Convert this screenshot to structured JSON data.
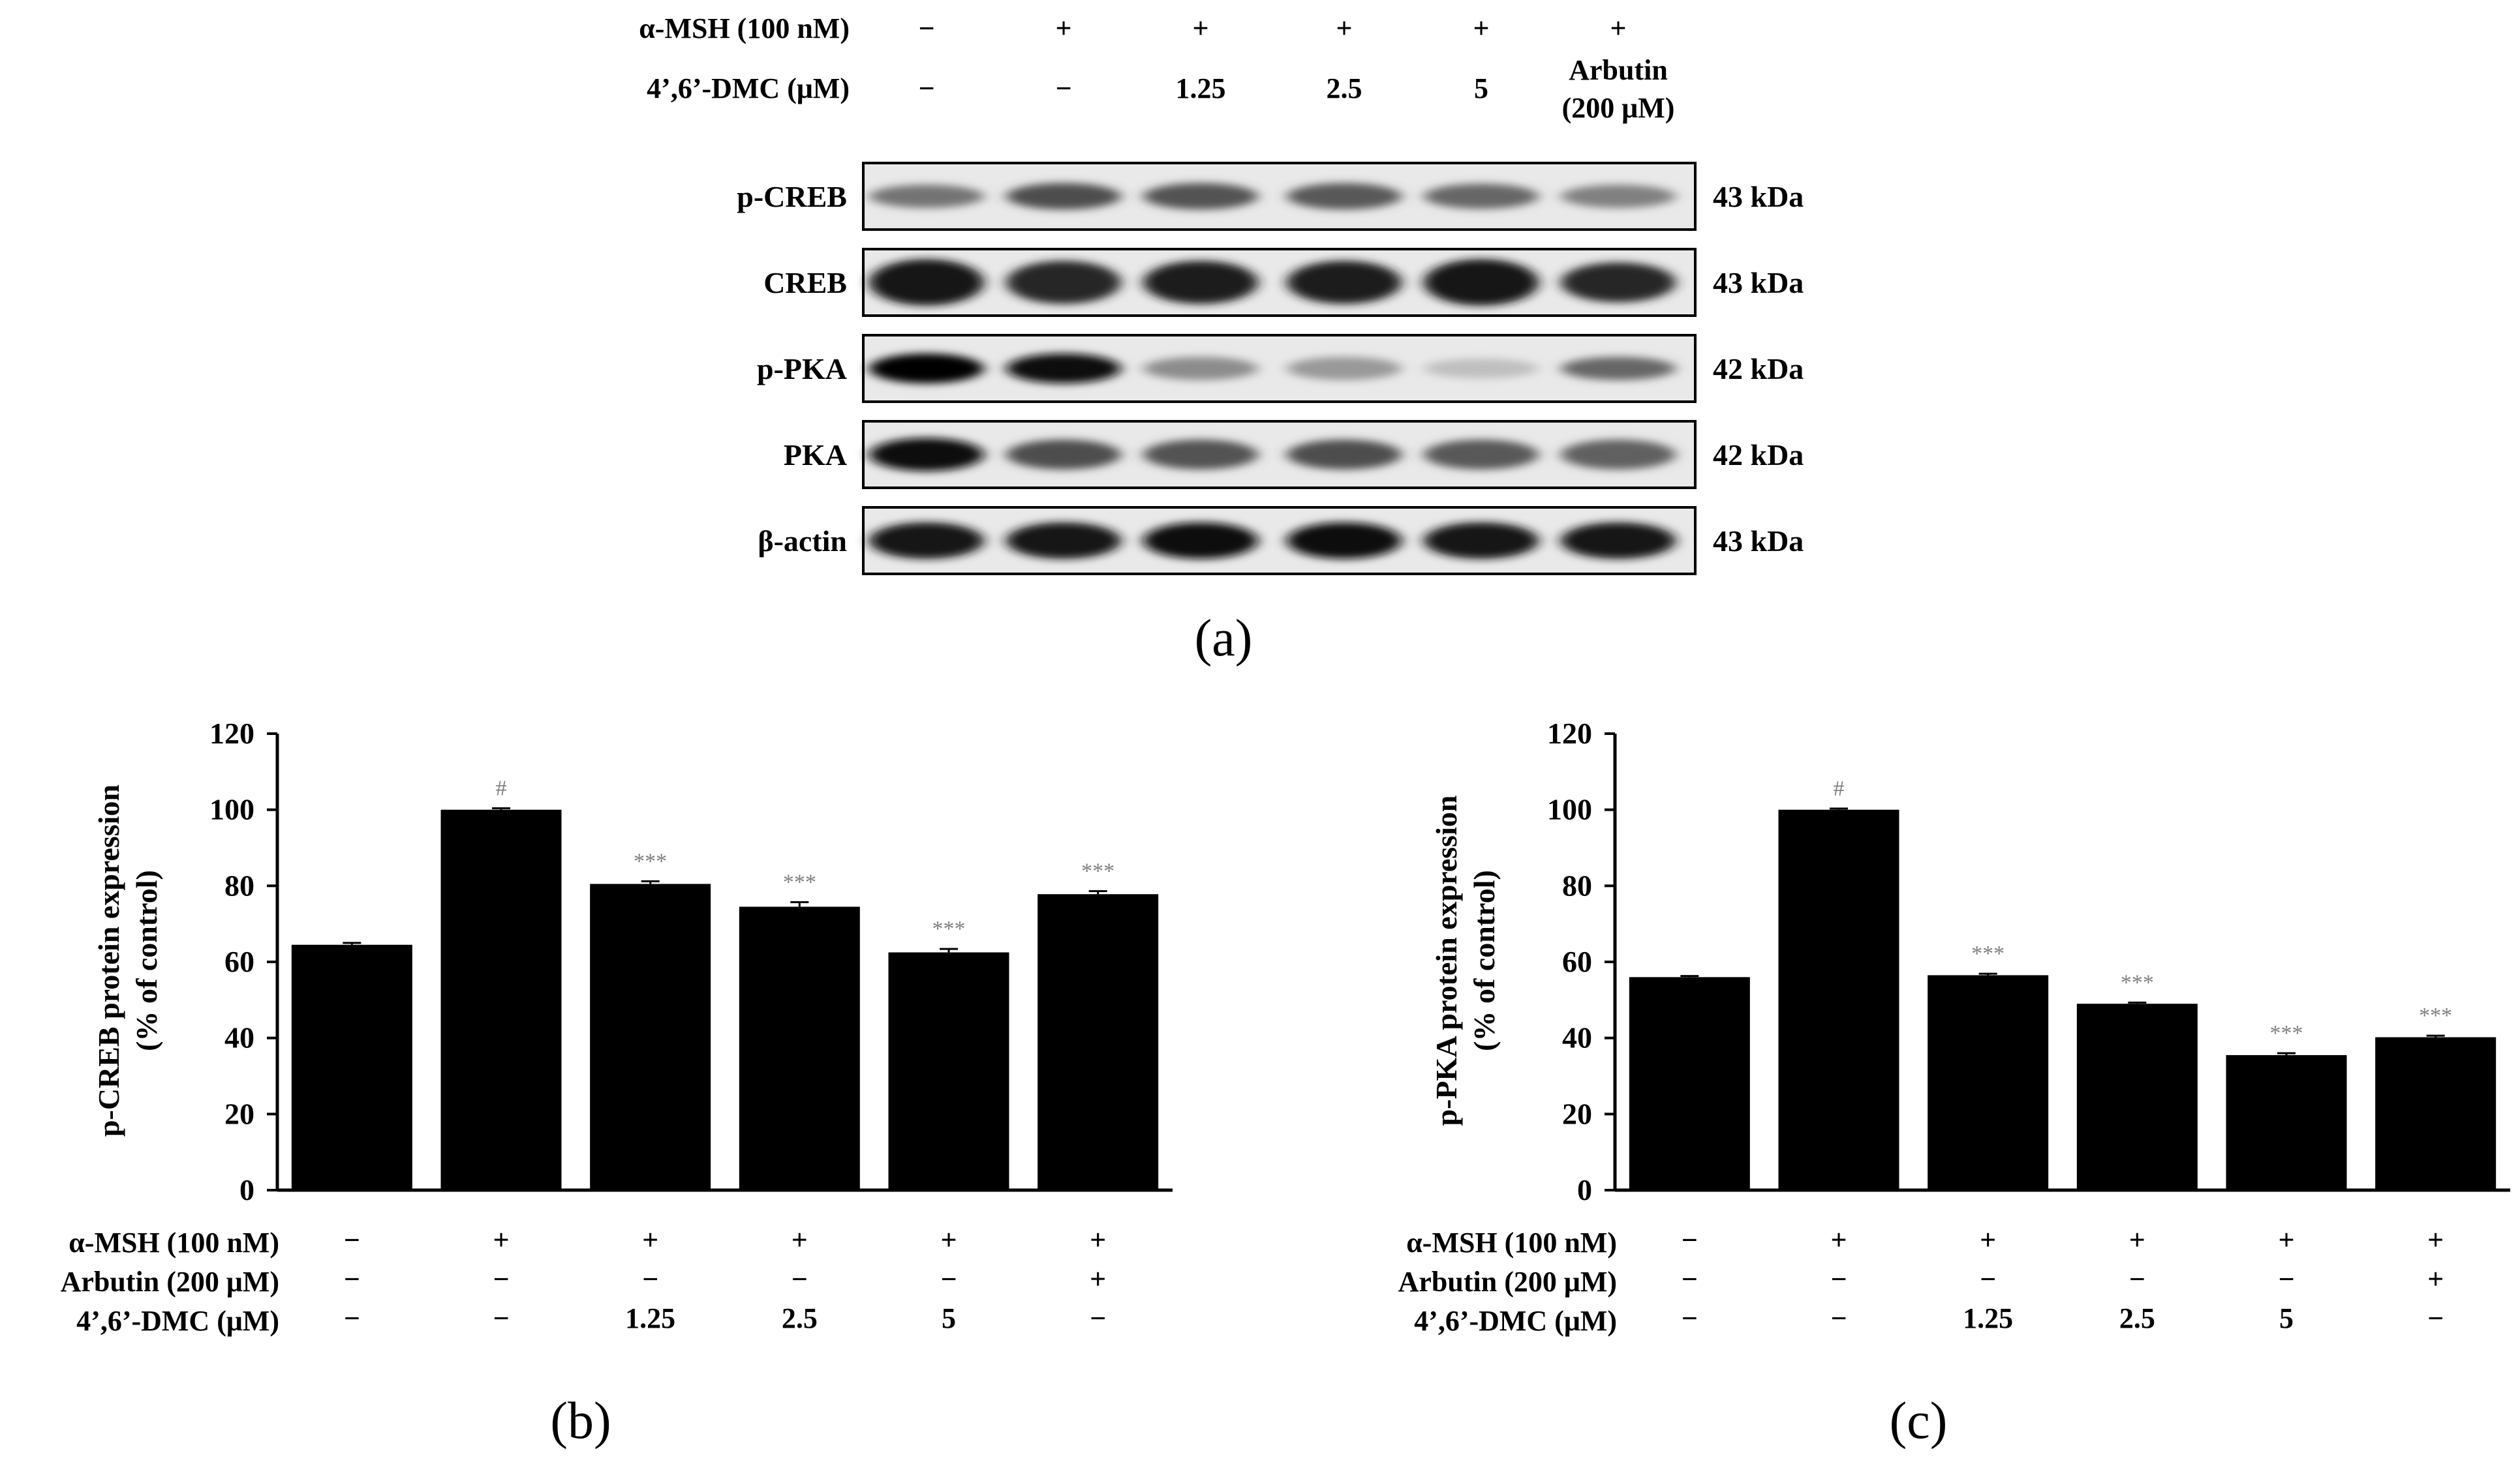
{
  "panel_a": {
    "caption": "(a)",
    "treatment_rows": [
      {
        "label": "α-MSH (100 nM)",
        "values": [
          "−",
          "+",
          "+",
          "+",
          "+",
          "+"
        ]
      },
      {
        "label": "4’,6’-DMC (μM)",
        "values": [
          "−",
          "−",
          "1.25",
          "2.5",
          "5",
          "Arbutin"
        ],
        "extra": [
          "",
          "",
          "",
          "",
          "",
          "(200 μM)"
        ]
      }
    ],
    "blots": [
      {
        "name": "p-CREB",
        "size": "43 kDa",
        "intensity": [
          0.55,
          0.7,
          0.68,
          0.65,
          0.6,
          0.5
        ],
        "thickness": [
          0.35,
          0.4,
          0.4,
          0.4,
          0.38,
          0.35
        ]
      },
      {
        "name": "CREB",
        "size": "43 kDa",
        "intensity": [
          0.92,
          0.85,
          0.88,
          0.88,
          0.9,
          0.85
        ],
        "thickness": [
          0.7,
          0.65,
          0.65,
          0.65,
          0.7,
          0.6
        ]
      },
      {
        "name": "p-PKA",
        "size": "42 kDa",
        "intensity": [
          0.98,
          0.95,
          0.45,
          0.4,
          0.25,
          0.6
        ],
        "thickness": [
          0.45,
          0.45,
          0.35,
          0.35,
          0.3,
          0.35
        ]
      },
      {
        "name": "PKA",
        "size": "42 kDa",
        "intensity": [
          0.97,
          0.7,
          0.68,
          0.7,
          0.65,
          0.62
        ],
        "thickness": [
          0.5,
          0.45,
          0.45,
          0.45,
          0.45,
          0.45
        ]
      },
      {
        "name": "β-actin",
        "size": "43 kDa",
        "intensity": [
          0.92,
          0.92,
          0.95,
          0.95,
          0.92,
          0.9
        ],
        "thickness": [
          0.55,
          0.55,
          0.55,
          0.55,
          0.55,
          0.55
        ]
      }
    ]
  },
  "colors": {
    "bar": "#000000",
    "significance": "#7f7f7f",
    "blot_bg": "#e9e9e9"
  },
  "chart_data": [
    {
      "type": "bar",
      "caption": "(b)",
      "ylabel": "p-CREB protein expression",
      "ylabel2": "(% of control)",
      "ylim": [
        0,
        120
      ],
      "yticks": [
        0,
        20,
        40,
        60,
        80,
        100,
        120
      ],
      "values": [
        64.5,
        100,
        80.5,
        74.5,
        62.5,
        77.8
      ],
      "errors": [
        0.5,
        0.4,
        0.7,
        1.2,
        0.9,
        0.8
      ],
      "significance": [
        "",
        "#",
        "***",
        "***",
        "***",
        "***"
      ],
      "grid": false,
      "treatment_rows": [
        {
          "label": "α-MSH (100 nM)",
          "values": [
            "−",
            "+",
            "+",
            "+",
            "+",
            "+"
          ]
        },
        {
          "label": "Arbutin (200 μM)",
          "values": [
            "−",
            "−",
            "−",
            "−",
            "−",
            "+"
          ]
        },
        {
          "label": "4’,6’-DMC (μM)",
          "values": [
            "−",
            "−",
            "1.25",
            "2.5",
            "5",
            "−"
          ]
        }
      ]
    },
    {
      "type": "bar",
      "caption": "(c)",
      "ylabel": "p-PKA protein expression",
      "ylabel2": "(% of control)",
      "ylim": [
        0,
        120
      ],
      "yticks": [
        0,
        20,
        40,
        60,
        80,
        100,
        120
      ],
      "values": [
        56,
        100,
        56.5,
        49,
        35.5,
        40.2
      ],
      "errors": [
        0.3,
        0.3,
        0.4,
        0.3,
        0.5,
        0.4
      ],
      "significance": [
        "",
        "#",
        "***",
        "***",
        "***",
        "***"
      ],
      "grid": false,
      "treatment_rows": [
        {
          "label": "α-MSH (100 nM)",
          "values": [
            "−",
            "+",
            "+",
            "+",
            "+",
            "+"
          ]
        },
        {
          "label": "Arbutin (200 μM)",
          "values": [
            "−",
            "−",
            "−",
            "−",
            "−",
            "+"
          ]
        },
        {
          "label": "4’,6’-DMC (μM)",
          "values": [
            "−",
            "−",
            "1.25",
            "2.5",
            "5",
            "−"
          ]
        }
      ]
    }
  ]
}
